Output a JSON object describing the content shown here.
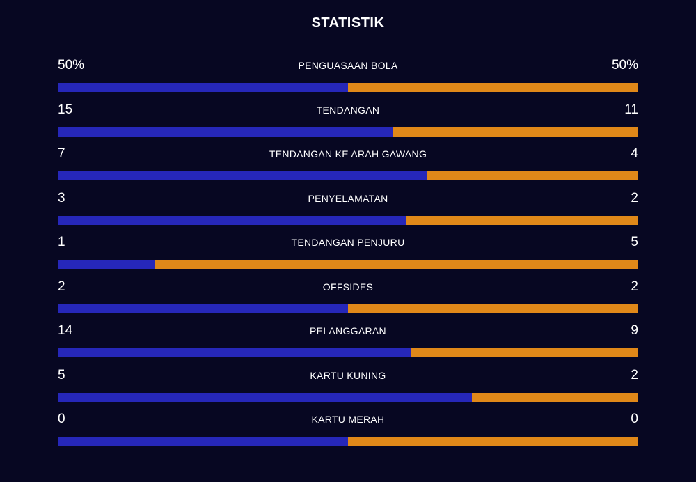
{
  "title": "STATISTIK",
  "colors": {
    "background": "#070722",
    "home": "#2627b9",
    "away": "#e08819",
    "text": "#ffffff"
  },
  "stats": [
    {
      "label": "PENGUASAAN BOLA",
      "home": "50%",
      "away": "50%",
      "home_share": 0.5
    },
    {
      "label": "TENDANGAN",
      "home": "15",
      "away": "11",
      "home_share": 0.577
    },
    {
      "label": "TENDANGAN KE ARAH GAWANG",
      "home": "7",
      "away": "4",
      "home_share": 0.636
    },
    {
      "label": "PENYELAMATAN",
      "home": "3",
      "away": "2",
      "home_share": 0.6
    },
    {
      "label": "TENDANGAN PENJURU",
      "home": "1",
      "away": "5",
      "home_share": 0.167
    },
    {
      "label": "OFFSIDES",
      "home": "2",
      "away": "2",
      "home_share": 0.5
    },
    {
      "label": "PELANGGARAN",
      "home": "14",
      "away": "9",
      "home_share": 0.609
    },
    {
      "label": "KARTU KUNING",
      "home": "5",
      "away": "2",
      "home_share": 0.714
    },
    {
      "label": "KARTU MERAH",
      "home": "0",
      "away": "0",
      "home_share": 0.5
    }
  ]
}
